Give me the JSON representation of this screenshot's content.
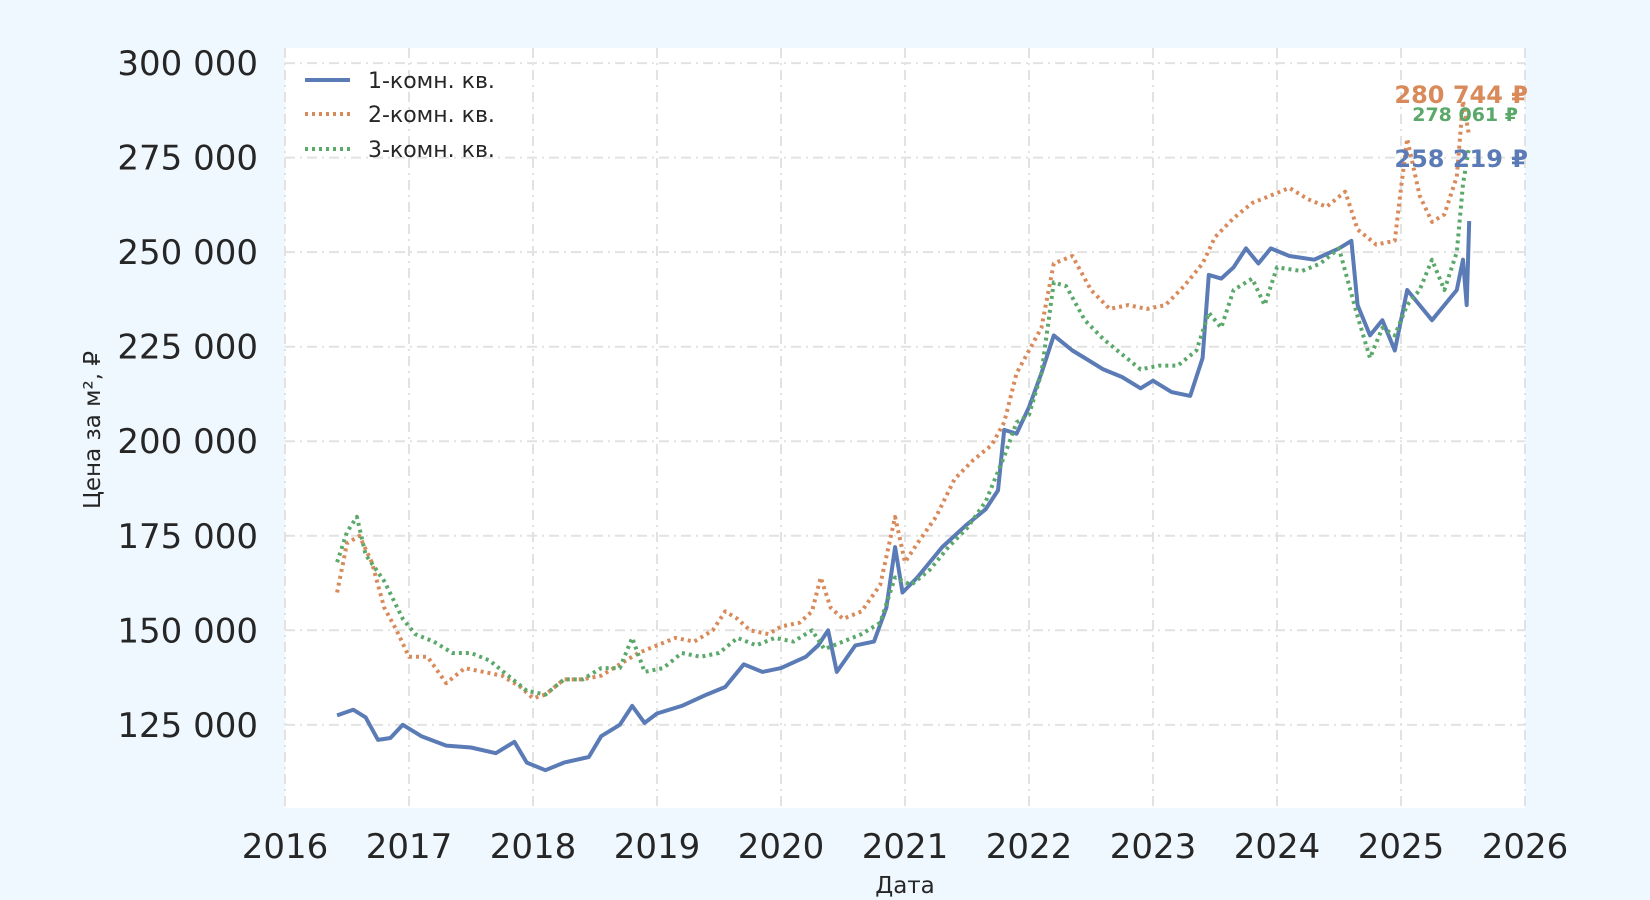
{
  "chart_data": {
    "type": "line",
    "title": "",
    "xlabel": "Дата",
    "ylabel": "Цена за м², ₽",
    "xlim": [
      2016,
      2026
    ],
    "ylim": [
      103000,
      304000
    ],
    "x_ticks": [
      "2016",
      "2017",
      "2018",
      "2019",
      "2020",
      "2021",
      "2022",
      "2023",
      "2024",
      "2025",
      "2026"
    ],
    "y_ticks": [
      "125 000",
      "150 000",
      "175 000",
      "200 000",
      "225 000",
      "250 000",
      "275 000",
      "300 000"
    ],
    "grid": true,
    "legend_position": "top-left",
    "series": [
      {
        "name": "1-комн. кв.",
        "color": "#5a7bb5",
        "style": "solid",
        "end_label": "258 219 ₽",
        "points": [
          [
            2016.42,
            127500
          ],
          [
            2016.55,
            129000
          ],
          [
            2016.65,
            127000
          ],
          [
            2016.75,
            121000
          ],
          [
            2016.85,
            121500
          ],
          [
            2016.95,
            125000
          ],
          [
            2017.1,
            122000
          ],
          [
            2017.3,
            119500
          ],
          [
            2017.5,
            119000
          ],
          [
            2017.7,
            117500
          ],
          [
            2017.85,
            120500
          ],
          [
            2017.95,
            115000
          ],
          [
            2018.1,
            113000
          ],
          [
            2018.25,
            115000
          ],
          [
            2018.45,
            116500
          ],
          [
            2018.55,
            122000
          ],
          [
            2018.7,
            125000
          ],
          [
            2018.8,
            130000
          ],
          [
            2018.9,
            125500
          ],
          [
            2019.0,
            128000
          ],
          [
            2019.2,
            130000
          ],
          [
            2019.4,
            133000
          ],
          [
            2019.55,
            135000
          ],
          [
            2019.7,
            141000
          ],
          [
            2019.85,
            139000
          ],
          [
            2020.0,
            140000
          ],
          [
            2020.2,
            143000
          ],
          [
            2020.3,
            146000
          ],
          [
            2020.38,
            150000
          ],
          [
            2020.45,
            139000
          ],
          [
            2020.6,
            146000
          ],
          [
            2020.75,
            147000
          ],
          [
            2020.85,
            156000
          ],
          [
            2020.92,
            172000
          ],
          [
            2020.98,
            160000
          ],
          [
            2021.1,
            164000
          ],
          [
            2021.3,
            172000
          ],
          [
            2021.5,
            178000
          ],
          [
            2021.65,
            182000
          ],
          [
            2021.75,
            187000
          ],
          [
            2021.8,
            203000
          ],
          [
            2021.9,
            202000
          ],
          [
            2022.0,
            209000
          ],
          [
            2022.1,
            218000
          ],
          [
            2022.2,
            228000
          ],
          [
            2022.35,
            224000
          ],
          [
            2022.45,
            222000
          ],
          [
            2022.6,
            219000
          ],
          [
            2022.75,
            217000
          ],
          [
            2022.9,
            214000
          ],
          [
            2023.0,
            216000
          ],
          [
            2023.15,
            213000
          ],
          [
            2023.3,
            212000
          ],
          [
            2023.4,
            222000
          ],
          [
            2023.45,
            244000
          ],
          [
            2023.55,
            243000
          ],
          [
            2023.65,
            246000
          ],
          [
            2023.75,
            251000
          ],
          [
            2023.85,
            247000
          ],
          [
            2023.95,
            251000
          ],
          [
            2024.1,
            249000
          ],
          [
            2024.3,
            248000
          ],
          [
            2024.5,
            251000
          ],
          [
            2024.6,
            253000
          ],
          [
            2024.65,
            236000
          ],
          [
            2024.75,
            228000
          ],
          [
            2024.85,
            232000
          ],
          [
            2024.95,
            224000
          ],
          [
            2025.05,
            240000
          ],
          [
            2025.15,
            236000
          ],
          [
            2025.25,
            232000
          ],
          [
            2025.35,
            236000
          ],
          [
            2025.45,
            240000
          ],
          [
            2025.5,
            248000
          ],
          [
            2025.53,
            236000
          ],
          [
            2025.55,
            258219
          ]
        ]
      },
      {
        "name": "2-комн. кв.",
        "color": "#d98a5a",
        "style": "dotted",
        "end_label": "280 744 ₽",
        "points": [
          [
            2016.42,
            160000
          ],
          [
            2016.5,
            173000
          ],
          [
            2016.6,
            175000
          ],
          [
            2016.7,
            168000
          ],
          [
            2016.8,
            156000
          ],
          [
            2016.9,
            150000
          ],
          [
            2017.0,
            143000
          ],
          [
            2017.15,
            143000
          ],
          [
            2017.3,
            136000
          ],
          [
            2017.45,
            140000
          ],
          [
            2017.6,
            139000
          ],
          [
            2017.75,
            138000
          ],
          [
            2017.9,
            135000
          ],
          [
            2018.0,
            132000
          ],
          [
            2018.1,
            133000
          ],
          [
            2018.25,
            137000
          ],
          [
            2018.4,
            137000
          ],
          [
            2018.55,
            138000
          ],
          [
            2018.7,
            141000
          ],
          [
            2018.85,
            144000
          ],
          [
            2019.0,
            146000
          ],
          [
            2019.15,
            148000
          ],
          [
            2019.3,
            147000
          ],
          [
            2019.45,
            150000
          ],
          [
            2019.55,
            155000
          ],
          [
            2019.65,
            153000
          ],
          [
            2019.75,
            150000
          ],
          [
            2019.9,
            149000
          ],
          [
            2020.0,
            151000
          ],
          [
            2020.15,
            152000
          ],
          [
            2020.25,
            155000
          ],
          [
            2020.32,
            164000
          ],
          [
            2020.4,
            156000
          ],
          [
            2020.5,
            153000
          ],
          [
            2020.65,
            155000
          ],
          [
            2020.8,
            162000
          ],
          [
            2020.92,
            180000
          ],
          [
            2021.0,
            168000
          ],
          [
            2021.1,
            173000
          ],
          [
            2021.25,
            180000
          ],
          [
            2021.4,
            190000
          ],
          [
            2021.55,
            195000
          ],
          [
            2021.7,
            199000
          ],
          [
            2021.8,
            205000
          ],
          [
            2021.9,
            218000
          ],
          [
            2022.0,
            224000
          ],
          [
            2022.1,
            230000
          ],
          [
            2022.2,
            247000
          ],
          [
            2022.35,
            249000
          ],
          [
            2022.5,
            240000
          ],
          [
            2022.65,
            235000
          ],
          [
            2022.8,
            236000
          ],
          [
            2022.95,
            235000
          ],
          [
            2023.1,
            236000
          ],
          [
            2023.25,
            241000
          ],
          [
            2023.4,
            247000
          ],
          [
            2023.5,
            254000
          ],
          [
            2023.65,
            259000
          ],
          [
            2023.8,
            263000
          ],
          [
            2023.95,
            265000
          ],
          [
            2024.1,
            267000
          ],
          [
            2024.25,
            264000
          ],
          [
            2024.4,
            262000
          ],
          [
            2024.55,
            266000
          ],
          [
            2024.65,
            256000
          ],
          [
            2024.8,
            252000
          ],
          [
            2024.95,
            253000
          ],
          [
            2025.0,
            267000
          ],
          [
            2025.05,
            280000
          ],
          [
            2025.15,
            265000
          ],
          [
            2025.25,
            258000
          ],
          [
            2025.35,
            260000
          ],
          [
            2025.45,
            270000
          ],
          [
            2025.5,
            290000
          ],
          [
            2025.55,
            280744
          ]
        ]
      },
      {
        "name": "3-комн. кв.",
        "color": "#5aa86a",
        "style": "dotted",
        "end_label": "278 061 ₽",
        "points": [
          [
            2016.42,
            168000
          ],
          [
            2016.5,
            176000
          ],
          [
            2016.58,
            180000
          ],
          [
            2016.65,
            170000
          ],
          [
            2016.8,
            163000
          ],
          [
            2016.95,
            153000
          ],
          [
            2017.05,
            149000
          ],
          [
            2017.2,
            147000
          ],
          [
            2017.35,
            144000
          ],
          [
            2017.5,
            144000
          ],
          [
            2017.65,
            142000
          ],
          [
            2017.8,
            138000
          ],
          [
            2017.95,
            134000
          ],
          [
            2018.1,
            133000
          ],
          [
            2018.25,
            137000
          ],
          [
            2018.4,
            137000
          ],
          [
            2018.55,
            140000
          ],
          [
            2018.7,
            140000
          ],
          [
            2018.8,
            148000
          ],
          [
            2018.9,
            139000
          ],
          [
            2019.05,
            140000
          ],
          [
            2019.2,
            144000
          ],
          [
            2019.35,
            143000
          ],
          [
            2019.5,
            144000
          ],
          [
            2019.65,
            148000
          ],
          [
            2019.8,
            146000
          ],
          [
            2019.95,
            148000
          ],
          [
            2020.1,
            147000
          ],
          [
            2020.25,
            150000
          ],
          [
            2020.35,
            145000
          ],
          [
            2020.5,
            147000
          ],
          [
            2020.65,
            149000
          ],
          [
            2020.8,
            152000
          ],
          [
            2020.92,
            164000
          ],
          [
            2021.05,
            162000
          ],
          [
            2021.2,
            166000
          ],
          [
            2021.35,
            172000
          ],
          [
            2021.5,
            177000
          ],
          [
            2021.65,
            184000
          ],
          [
            2021.8,
            196000
          ],
          [
            2021.9,
            205000
          ],
          [
            2022.0,
            207000
          ],
          [
            2022.1,
            218000
          ],
          [
            2022.2,
            242000
          ],
          [
            2022.3,
            241000
          ],
          [
            2022.45,
            232000
          ],
          [
            2022.6,
            227000
          ],
          [
            2022.75,
            223000
          ],
          [
            2022.9,
            219000
          ],
          [
            2023.05,
            220000
          ],
          [
            2023.2,
            220000
          ],
          [
            2023.35,
            224000
          ],
          [
            2023.45,
            234000
          ],
          [
            2023.55,
            230000
          ],
          [
            2023.65,
            240000
          ],
          [
            2023.8,
            243000
          ],
          [
            2023.9,
            236000
          ],
          [
            2024.0,
            246000
          ],
          [
            2024.2,
            245000
          ],
          [
            2024.35,
            247000
          ],
          [
            2024.5,
            251000
          ],
          [
            2024.65,
            233000
          ],
          [
            2024.75,
            222000
          ],
          [
            2024.85,
            230000
          ],
          [
            2024.95,
            228000
          ],
          [
            2025.05,
            236000
          ],
          [
            2025.15,
            240000
          ],
          [
            2025.25,
            248000
          ],
          [
            2025.35,
            240000
          ],
          [
            2025.45,
            250000
          ],
          [
            2025.5,
            268000
          ],
          [
            2025.55,
            278061
          ]
        ]
      }
    ]
  }
}
